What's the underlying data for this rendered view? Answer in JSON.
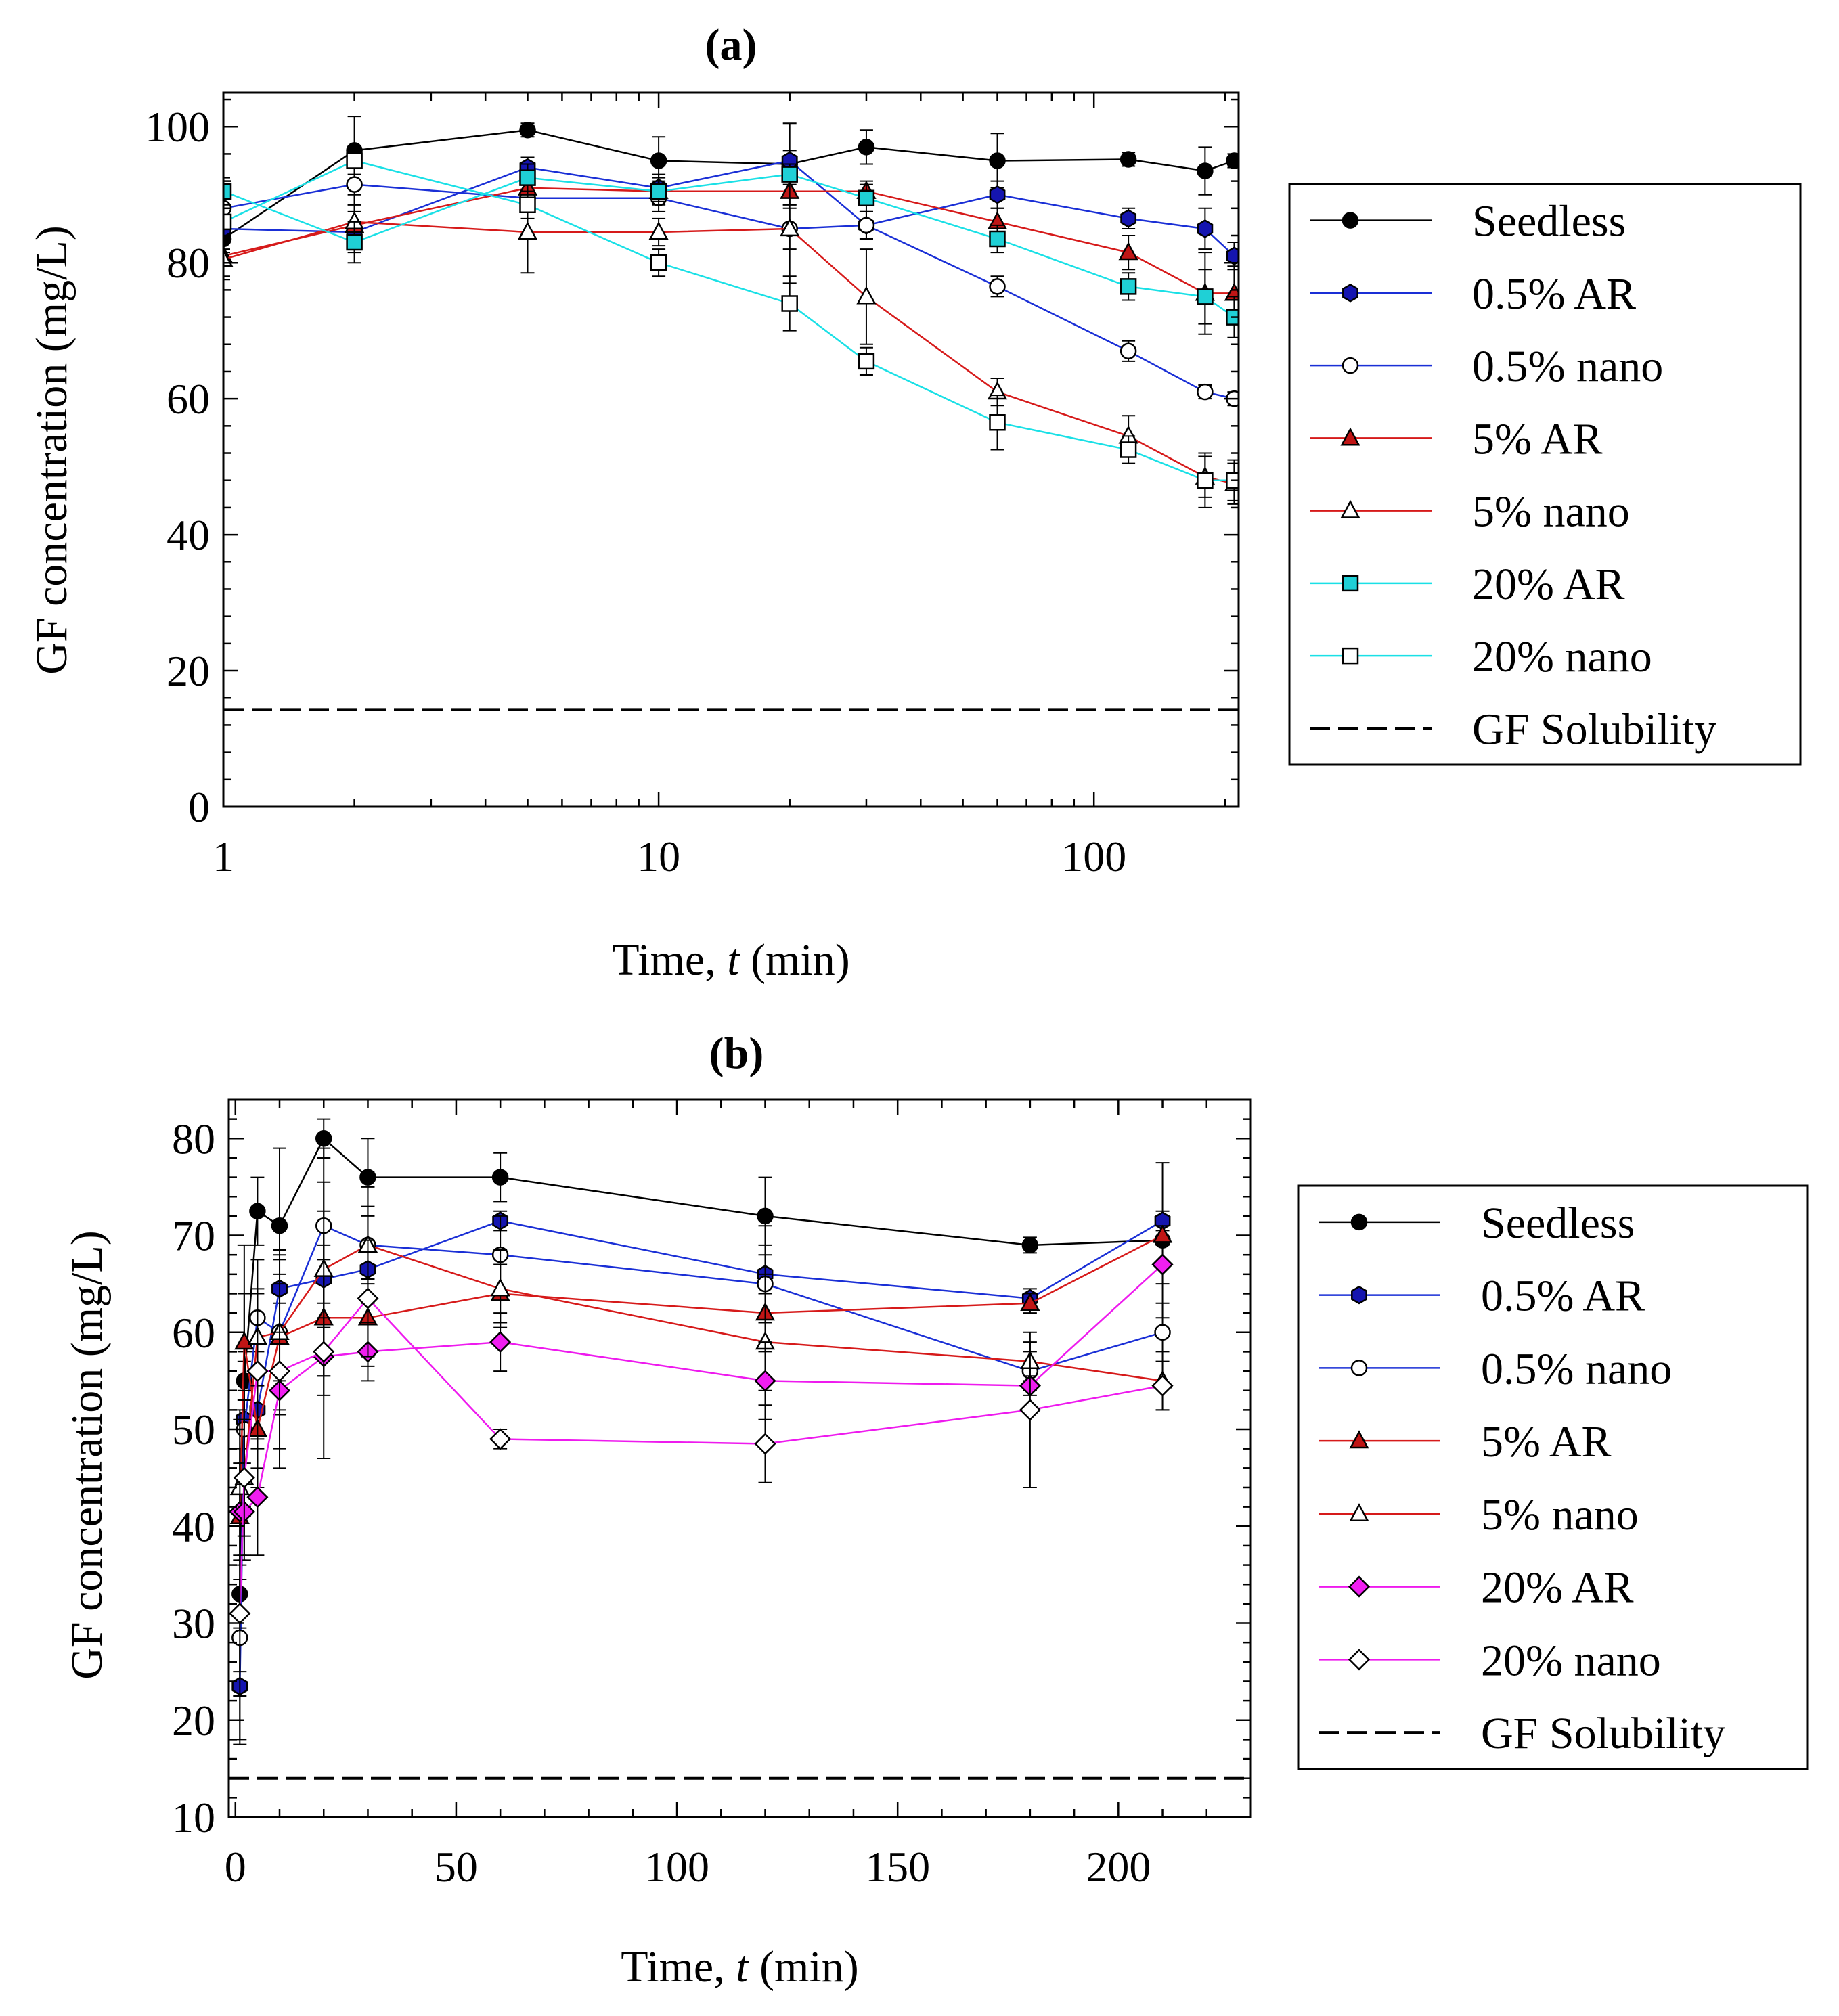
{
  "chart_data": [
    {
      "panel": "a",
      "type": "line",
      "title": "(a)",
      "xlabel_prefix": "Time, ",
      "xlabel_var": "t",
      "xlabel_suffix": " (min)",
      "ylabel": "GF concentration (mg/L)",
      "xscale": "log",
      "xlim": [
        1,
        215
      ],
      "ylim": [
        0,
        105
      ],
      "xticks": [
        1,
        10,
        100
      ],
      "xtick_labels": [
        "1",
        "10",
        "100"
      ],
      "yticks": [
        0,
        20,
        40,
        60,
        80,
        100
      ],
      "ytick_labels": [
        "0",
        "20",
        "40",
        "60",
        "80",
        "100"
      ],
      "legend_position": "right",
      "reference_line": {
        "name": "GF Solubility",
        "y": 14.3
      },
      "series": [
        {
          "name": "Seedless",
          "color": "#000000",
          "marker": "circle",
          "fill": "#000000",
          "x": [
            1,
            2,
            5,
            10,
            20,
            30,
            60,
            120,
            180,
            210
          ],
          "y": [
            83.5,
            96.5,
            99.5,
            95,
            94.5,
            97,
            95,
            95.2,
            93.5,
            95
          ],
          "err": [
            2,
            5,
            1,
            3.5,
            6,
            2.5,
            4,
            1,
            3.5,
            1
          ]
        },
        {
          "name": "0.5% AR",
          "color": "#1a2fd6",
          "marker": "hexagon",
          "fill": "#1515b0",
          "x": [
            1,
            2,
            5,
            10,
            20,
            30,
            60,
            120,
            180,
            210
          ],
          "y": [
            85,
            84.5,
            94,
            91,
            95,
            85.5,
            90,
            86.5,
            85,
            81
          ],
          "err": [
            3,
            3,
            1.5,
            2,
            1.5,
            2,
            2,
            1.5,
            3,
            2
          ]
        },
        {
          "name": "0.5% nano",
          "color": "#1a2fd6",
          "marker": "circle",
          "fill": "#ffffff",
          "x": [
            1,
            2,
            5,
            10,
            20,
            30,
            60,
            120,
            180,
            210
          ],
          "y": [
            88,
            91.5,
            89.5,
            89.5,
            85,
            85.5,
            76.5,
            67,
            61,
            60
          ],
          "err": [
            3,
            3,
            2,
            2,
            3,
            2,
            1.5,
            1.5,
            1,
            1
          ]
        },
        {
          "name": "5% AR",
          "color": "#d61a1a",
          "marker": "triangle",
          "fill": "#c01515",
          "x": [
            1,
            2,
            5,
            10,
            20,
            30,
            60,
            120,
            180,
            210
          ],
          "y": [
            81,
            85.5,
            91,
            90.5,
            90.5,
            90.5,
            86,
            81.5,
            75.5,
            75.5
          ],
          "err": [
            3,
            3,
            2,
            2,
            2,
            1.5,
            2,
            2.5,
            6,
            4
          ]
        },
        {
          "name": "5% nano",
          "color": "#d61a1a",
          "marker": "triangle",
          "fill": "#ffffff",
          "x": [
            1,
            2,
            5,
            10,
            20,
            30,
            60,
            120,
            180,
            210
          ],
          "y": [
            80.5,
            86,
            84.5,
            84.5,
            85,
            75,
            61,
            54.5,
            48.5,
            47.5
          ],
          "err": [
            3,
            4,
            6,
            2,
            8,
            7,
            2,
            3,
            3,
            3
          ]
        },
        {
          "name": "20% AR",
          "color": "#1ae0e6",
          "marker": "square",
          "fill": "#1fd0d6",
          "x": [
            1,
            2,
            5,
            10,
            20,
            30,
            60,
            120,
            180,
            210
          ],
          "y": [
            90.5,
            83,
            92.5,
            90.5,
            93,
            89.5,
            83.5,
            76.5,
            75,
            72
          ],
          "err": [
            2,
            3,
            2,
            1.5,
            1.5,
            2,
            2,
            2,
            4,
            3
          ]
        },
        {
          "name": "20% nano",
          "color": "#1ae0e6",
          "marker": "square",
          "fill": "#ffffff",
          "x": [
            1,
            2,
            5,
            10,
            20,
            30,
            60,
            120,
            180,
            210
          ],
          "y": [
            86,
            95,
            88.5,
            80,
            74,
            65.5,
            56.5,
            52.5,
            48,
            48
          ],
          "err": [
            2,
            2,
            2,
            2,
            4,
            2,
            4,
            2,
            4,
            3
          ]
        }
      ]
    },
    {
      "panel": "b",
      "type": "line",
      "title": "(b)",
      "xlabel_prefix": "Time, ",
      "xlabel_var": "t",
      "xlabel_suffix": " (min)",
      "ylabel": "GF concentration (mg/L)",
      "xscale": "linear",
      "xlim": [
        -1.5,
        230
      ],
      "ylim": [
        10,
        84
      ],
      "xticks": [
        0,
        50,
        100,
        150,
        200
      ],
      "xtick_labels": [
        "0",
        "50",
        "100",
        "150",
        "200"
      ],
      "yticks": [
        10,
        20,
        30,
        40,
        50,
        60,
        70,
        80
      ],
      "ytick_labels": [
        "10",
        "20",
        "30",
        "40",
        "50",
        "60",
        "70",
        "80"
      ],
      "legend_position": "right",
      "reference_line": {
        "name": "GF Solubility",
        "y": 14
      },
      "series": [
        {
          "name": "Seedless",
          "color": "#000000",
          "marker": "circle",
          "fill": "#000000",
          "x": [
            1,
            2,
            5,
            10,
            20,
            30,
            60,
            120,
            180,
            210
          ],
          "y": [
            33,
            55,
            72.5,
            71,
            80,
            76,
            76,
            72,
            69,
            69.5
          ],
          "err": [
            15,
            14,
            3.5,
            8,
            2,
            4,
            2.5,
            4,
            0.8,
            8
          ]
        },
        {
          "name": "0.5% AR",
          "color": "#1a2fd6",
          "marker": "hexagon",
          "fill": "#1515b0",
          "x": [
            1,
            2,
            5,
            10,
            20,
            30,
            60,
            120,
            180,
            210
          ],
          "y": [
            23.5,
            51,
            52,
            64.5,
            65.5,
            66.5,
            71.5,
            66,
            63.5,
            71.5
          ],
          "err": [
            6,
            6,
            6,
            4,
            10,
            10,
            1,
            5,
            1,
            1
          ]
        },
        {
          "name": "0.5% nano",
          "color": "#1a2fd6",
          "marker": "circle",
          "fill": "#ffffff",
          "x": [
            1,
            2,
            5,
            10,
            20,
            30,
            60,
            120,
            180,
            210
          ],
          "y": [
            28.5,
            50,
            61.5,
            60,
            71,
            69,
            68,
            65,
            56,
            60
          ],
          "err": [
            6,
            8,
            6,
            5,
            8,
            6,
            4,
            4,
            2,
            3
          ]
        },
        {
          "name": "5% AR",
          "color": "#d61a1a",
          "marker": "triangle",
          "fill": "#c01515",
          "x": [
            1,
            2,
            5,
            10,
            20,
            30,
            60,
            120,
            180,
            210
          ],
          "y": [
            41,
            59,
            50,
            59.5,
            61.5,
            61.5,
            64,
            62,
            63,
            70
          ],
          "err": [
            10,
            5,
            6,
            8,
            6,
            4,
            3,
            4,
            1,
            1
          ]
        },
        {
          "name": "5% nano",
          "color": "#d61a1a",
          "marker": "triangle",
          "fill": "#ffffff",
          "x": [
            1,
            2,
            5,
            10,
            20,
            30,
            60,
            120,
            180,
            210
          ],
          "y": [
            44,
            45,
            59.5,
            60,
            66.5,
            69,
            64.5,
            59,
            57,
            55
          ],
          "err": [
            8,
            8,
            5,
            8,
            6,
            4,
            4,
            5,
            2,
            3
          ]
        },
        {
          "name": "20% AR",
          "color": "#ee1aee",
          "marker": "diamond",
          "fill": "#f01ef0",
          "x": [
            1,
            2,
            5,
            10,
            20,
            30,
            60,
            120,
            180,
            210
          ],
          "y": [
            41.5,
            41.5,
            43,
            54,
            57.5,
            58,
            59,
            55,
            54.5,
            67
          ],
          "err": [
            5,
            5,
            6,
            6,
            4,
            3,
            3,
            4,
            1,
            2
          ]
        },
        {
          "name": "20% nano",
          "color": "#ee1aee",
          "marker": "diamond",
          "fill": "#ffffff",
          "x": [
            1,
            2,
            5,
            10,
            20,
            30,
            60,
            120,
            180,
            210
          ],
          "y": [
            31,
            45,
            56,
            56,
            58,
            63.5,
            49,
            48.5,
            52,
            54.5
          ],
          "err": [
            6,
            6,
            8,
            10,
            11,
            6,
            1,
            4,
            8,
            2.5
          ]
        }
      ]
    }
  ]
}
